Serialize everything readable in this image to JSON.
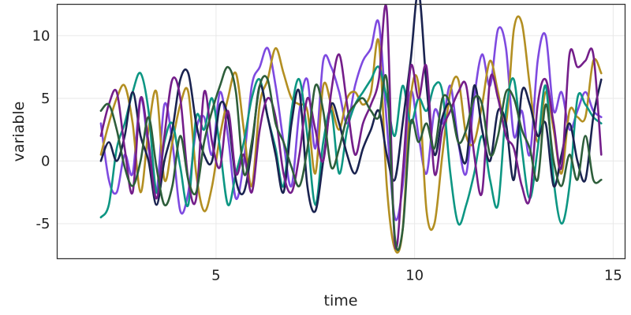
{
  "chart_data": {
    "type": "line",
    "title": "",
    "xlabel": "time",
    "ylabel": "variable",
    "xlim": [
      1.0,
      15.3
    ],
    "ylim": [
      -7.8,
      12.5
    ],
    "xticks": [
      5,
      10,
      15
    ],
    "yticks": [
      -5,
      0,
      5,
      10
    ],
    "ytick_labels": [
      "-5",
      "0",
      "5",
      "10"
    ],
    "grid": true,
    "legend": "none",
    "x": [
      2.1,
      2.3,
      2.5,
      2.7,
      2.9,
      3.1,
      3.3,
      3.5,
      3.7,
      3.9,
      4.1,
      4.3,
      4.5,
      4.7,
      4.9,
      5.1,
      5.3,
      5.5,
      5.7,
      5.9,
      6.1,
      6.3,
      6.5,
      6.7,
      6.9,
      7.1,
      7.3,
      7.5,
      7.7,
      7.9,
      8.1,
      8.3,
      8.5,
      8.7,
      8.9,
      9.1,
      9.3,
      9.5,
      9.7,
      9.9,
      10.1,
      10.3,
      10.5,
      10.7,
      10.9,
      11.1,
      11.3,
      11.5,
      11.7,
      11.9,
      12.1,
      12.3,
      12.5,
      12.7,
      12.9,
      13.1,
      13.3,
      13.5,
      13.7,
      13.9,
      14.1,
      14.3,
      14.5,
      14.7
    ],
    "series": [
      {
        "color": "#7e4ae0",
        "values": [
          3.0,
          -1.5,
          -2.5,
          0.5,
          -1.0,
          5.0,
          1.0,
          -2.5,
          4.5,
          1.5,
          -4.0,
          -2.5,
          2.5,
          3.5,
          0.5,
          5.5,
          2.0,
          -3.0,
          0.0,
          6.0,
          7.5,
          9.0,
          6.0,
          1.5,
          -2.0,
          4.0,
          6.5,
          1.0,
          8.0,
          7.5,
          5.5,
          3.0,
          6.0,
          8.0,
          9.0,
          11.0,
          3.0,
          -4.5,
          -2.0,
          5.5,
          2.0,
          -1.0,
          4.0,
          3.0,
          6.0,
          1.5,
          -1.0,
          5.0,
          8.5,
          6.0,
          10.5,
          9.0,
          2.0,
          4.0,
          0.5,
          8.0,
          10.0,
          4.0,
          5.5,
          2.5,
          4.0,
          5.5,
          4.0,
          3.5
        ]
      },
      {
        "color": "#b38f22",
        "values": [
          0.5,
          3.0,
          5.0,
          6.0,
          3.0,
          -2.5,
          2.5,
          5.5,
          -1.5,
          1.5,
          4.5,
          5.5,
          -1.0,
          -4.0,
          -2.0,
          2.0,
          5.0,
          7.0,
          2.5,
          -2.0,
          4.5,
          6.5,
          9.0,
          7.0,
          5.0,
          4.5,
          4.0,
          -1.0,
          6.0,
          4.5,
          2.5,
          5.0,
          5.5,
          4.5,
          5.5,
          9.5,
          -2.0,
          -7.0,
          -5.5,
          5.0,
          6.0,
          -4.0,
          -5.0,
          0.5,
          5.5,
          6.5,
          2.0,
          1.5,
          4.5,
          8.0,
          5.5,
          3.0,
          10.5,
          11.0,
          6.0,
          1.5,
          5.5,
          2.5,
          -1.0,
          4.0,
          3.5,
          3.5,
          8.0,
          7.0
        ]
      },
      {
        "color": "#0d9683",
        "values": [
          -4.5,
          -3.5,
          1.0,
          3.0,
          5.5,
          7.0,
          4.0,
          -2.5,
          1.5,
          3.0,
          -0.5,
          -3.5,
          3.5,
          2.5,
          5.0,
          1.0,
          -3.5,
          -1.0,
          1.5,
          5.0,
          6.5,
          3.5,
          1.0,
          -2.0,
          4.0,
          6.5,
          2.0,
          -3.5,
          1.5,
          4.0,
          -1.0,
          2.5,
          4.5,
          5.5,
          6.5,
          7.5,
          5.0,
          2.0,
          6.0,
          3.0,
          5.0,
          4.0,
          6.0,
          5.5,
          -1.0,
          -5.0,
          -3.5,
          -1.0,
          2.0,
          -1.5,
          -3.5,
          4.0,
          6.5,
          1.0,
          -3.0,
          1.0,
          6.0,
          -1.5,
          -5.0,
          -2.0,
          5.0,
          4.5,
          3.5,
          3.0
        ]
      },
      {
        "color": "#1a2350",
        "values": [
          0.0,
          1.5,
          0.0,
          2.0,
          5.5,
          2.0,
          0.0,
          -3.5,
          0.0,
          2.5,
          6.5,
          7.0,
          3.0,
          0.5,
          0.0,
          4.5,
          3.5,
          -1.5,
          -2.5,
          1.0,
          6.0,
          3.5,
          0.5,
          -2.5,
          3.0,
          5.5,
          -2.0,
          -4.0,
          0.0,
          4.5,
          3.0,
          0.5,
          -1.0,
          1.0,
          2.5,
          4.0,
          0.5,
          -1.5,
          3.0,
          8.0,
          13.5,
          6.0,
          0.5,
          3.5,
          4.5,
          1.5,
          0.0,
          6.0,
          2.5,
          0.0,
          4.0,
          3.0,
          -1.5,
          5.5,
          4.5,
          2.0,
          3.0,
          -2.0,
          0.5,
          3.0,
          0.0,
          -1.5,
          3.5,
          6.5
        ]
      },
      {
        "color": "#741e8a",
        "values": [
          2.0,
          4.5,
          5.5,
          1.0,
          -2.5,
          5.0,
          1.5,
          -3.0,
          2.0,
          6.5,
          5.0,
          -1.5,
          -3.0,
          5.5,
          1.5,
          -0.5,
          4.0,
          -1.0,
          0.5,
          -2.5,
          2.5,
          5.0,
          3.5,
          -1.0,
          -2.5,
          0.5,
          5.0,
          2.5,
          0.0,
          5.5,
          8.5,
          4.5,
          0.5,
          3.0,
          4.5,
          6.5,
          12.0,
          -6.5,
          -1.0,
          7.5,
          5.0,
          7.5,
          -1.0,
          2.5,
          4.0,
          5.5,
          6.0,
          0.5,
          -2.5,
          6.5,
          5.0,
          2.0,
          1.0,
          -2.0,
          -3.0,
          4.5,
          6.5,
          3.0,
          -0.5,
          8.5,
          7.5,
          8.0,
          8.5,
          0.5
        ]
      },
      {
        "color": "#2e5e3b",
        "values": [
          4.0,
          4.5,
          2.5,
          -0.5,
          -2.0,
          0.0,
          3.5,
          -0.5,
          -3.5,
          -2.0,
          2.0,
          -1.5,
          -2.5,
          1.5,
          4.0,
          6.0,
          7.5,
          5.5,
          -1.0,
          1.5,
          6.0,
          6.5,
          3.0,
          1.5,
          -0.5,
          -2.0,
          1.0,
          6.0,
          4.0,
          -0.5,
          1.0,
          3.5,
          4.5,
          5.0,
          4.0,
          3.5,
          6.5,
          -6.0,
          -5.5,
          3.0,
          1.5,
          3.0,
          1.0,
          5.0,
          4.5,
          1.5,
          2.5,
          5.0,
          4.5,
          0.5,
          2.0,
          5.5,
          5.0,
          2.5,
          1.0,
          -1.5,
          4.5,
          0.0,
          -2.0,
          0.5,
          -1.5,
          2.0,
          -1.5,
          -1.5
        ]
      }
    ]
  }
}
